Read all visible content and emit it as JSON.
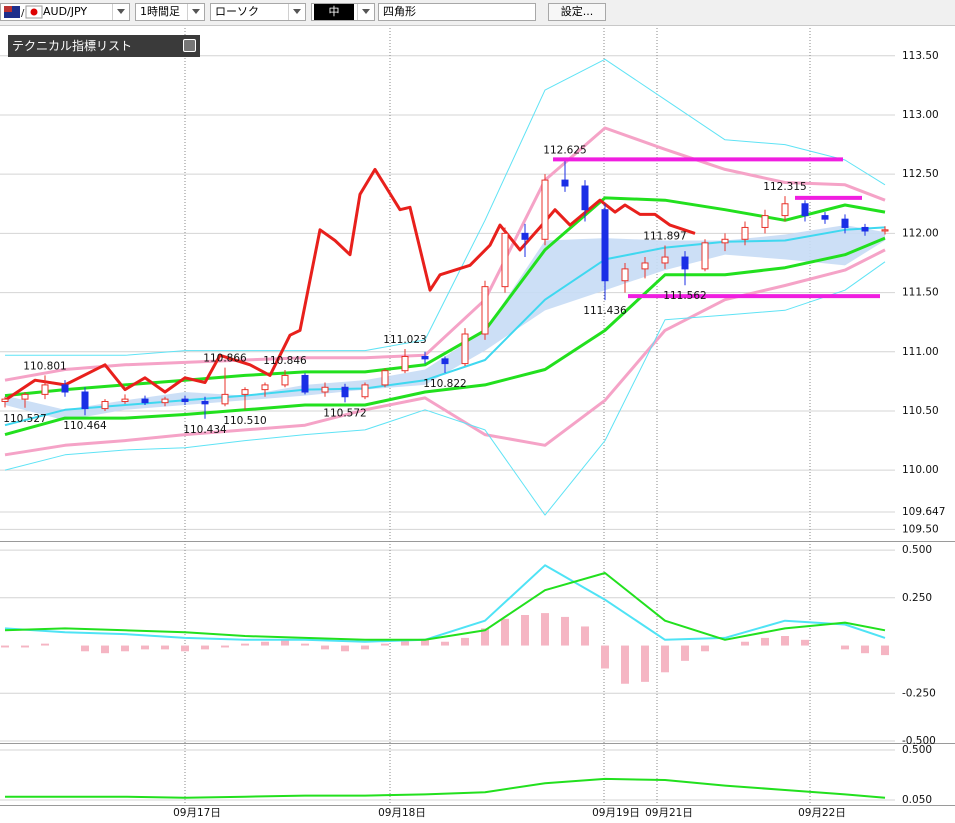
{
  "toolbar": {
    "symbol": "AUD/JPY",
    "timeframe": "1時間足",
    "chart_style": "ローソク",
    "line_width": "中",
    "shape": "四角形",
    "settings_button": "設定..."
  },
  "indicator_panel": {
    "title": "テクニカル指標リスト"
  },
  "chart_data": [
    {
      "type": "candlestick",
      "xlim": [
        -0.25,
        44.5
      ],
      "ylim": [
        109.41,
        113.76
      ],
      "xticks": [
        {
          "value": 9,
          "label": "09月17日"
        },
        {
          "value": 19.25,
          "label": "09月18日"
        },
        {
          "value": 29.95,
          "label": "09月19日"
        },
        {
          "value": 32.6,
          "label": "09月21日"
        },
        {
          "value": 40.25,
          "label": "09月22日"
        }
      ],
      "yticks": [
        {
          "value": 113.5,
          "label": "113.50"
        },
        {
          "value": 113,
          "label": "113.00"
        },
        {
          "value": 112.5,
          "label": "112.50"
        },
        {
          "value": 112,
          "label": "112.00"
        },
        {
          "value": 111.5,
          "label": "111.50"
        },
        {
          "value": 111,
          "label": "111.00"
        },
        {
          "value": 110.5,
          "label": "110.50"
        },
        {
          "value": 110,
          "label": "110.00"
        },
        109.647,
        {
          "value": 109.5,
          "label": "109.50"
        }
      ],
      "open": [
        110.58,
        110.6,
        110.64,
        110.72,
        110.66,
        110.52,
        110.58,
        110.6,
        110.57,
        110.6,
        110.58,
        110.56,
        110.64,
        110.68,
        110.72,
        110.8,
        110.66,
        110.7,
        110.62,
        110.72,
        110.84,
        110.96,
        110.94,
        110.9,
        111.15,
        111.55,
        112.0,
        111.95,
        112.45,
        112.4,
        112.2,
        111.6,
        111.7,
        111.75,
        111.8,
        111.7,
        111.92,
        111.95,
        112.05,
        112.15,
        112.25,
        112.15,
        112.12,
        112.05,
        112.02
      ],
      "high": [
        110.62,
        110.66,
        110.801,
        110.76,
        110.7,
        110.6,
        110.64,
        110.63,
        110.62,
        110.63,
        110.62,
        110.866,
        110.7,
        110.74,
        110.846,
        110.82,
        110.74,
        110.73,
        110.74,
        110.86,
        111.023,
        111.0,
        110.96,
        111.2,
        111.6,
        112.05,
        112.08,
        112.5,
        112.625,
        112.45,
        112.25,
        111.75,
        111.8,
        111.897,
        111.85,
        111.95,
        112.0,
        112.1,
        112.2,
        112.315,
        112.28,
        112.18,
        112.16,
        112.08,
        112.06
      ],
      "low": [
        110.53,
        110.527,
        110.6,
        110.62,
        110.464,
        110.5,
        110.56,
        110.55,
        110.54,
        110.55,
        110.434,
        110.54,
        110.51,
        110.62,
        110.7,
        110.64,
        110.62,
        110.572,
        110.6,
        110.7,
        110.82,
        110.9,
        110.822,
        110.88,
        111.1,
        111.5,
        111.8,
        111.9,
        112.35,
        112.1,
        111.436,
        111.5,
        111.62,
        111.7,
        111.562,
        111.68,
        111.85,
        111.9,
        112.0,
        112.1,
        112.1,
        112.08,
        112.0,
        111.98,
        111.99
      ],
      "close": [
        110.6,
        110.64,
        110.72,
        110.66,
        110.52,
        110.58,
        110.6,
        110.57,
        110.6,
        110.58,
        110.56,
        110.64,
        110.68,
        110.72,
        110.8,
        110.66,
        110.7,
        110.62,
        110.72,
        110.84,
        110.96,
        110.94,
        110.9,
        111.15,
        111.55,
        112.0,
        111.95,
        112.45,
        112.4,
        112.2,
        111.6,
        111.7,
        111.75,
        111.8,
        111.7,
        111.92,
        111.95,
        112.05,
        112.15,
        112.25,
        112.15,
        112.12,
        112.05,
        112.02,
        112.03
      ],
      "up_color": "#e8332b",
      "down_color": "#1a2ee6",
      "line_x": [
        0,
        3,
        6,
        9,
        12,
        15,
        18,
        21,
        24,
        27,
        30,
        33,
        36,
        39,
        42,
        44
      ],
      "cloud": {
        "color": "#c6dcf5",
        "upper": [
          110.63,
          110.51,
          110.59,
          110.66,
          110.63,
          110.72,
          110.76,
          110.85,
          111.18,
          111.94,
          111.96,
          111.94,
          111.94,
          111.99,
          112.07,
          112.01
        ],
        "lower": [
          110.55,
          110.42,
          110.51,
          110.55,
          110.59,
          110.63,
          110.68,
          110.72,
          111.01,
          111.35,
          111.52,
          111.69,
          111.82,
          111.78,
          111.73,
          111.94
        ]
      },
      "lines": [
        {
          "color": "#5fe3f5",
          "width": 1,
          "values": [
            110.97,
            110.97,
            110.97,
            111.01,
            111.01,
            111.01,
            111.01,
            111.1,
            112.11,
            113.21,
            113.47,
            113.13,
            112.79,
            112.75,
            112.62,
            112.41
          ]
        },
        {
          "color": "#f5a3c7",
          "width": 3,
          "values": [
            110.76,
            110.85,
            110.89,
            110.91,
            110.93,
            110.95,
            110.95,
            110.97,
            111.44,
            112.45,
            112.89,
            112.71,
            112.54,
            112.43,
            112.41,
            112.28
          ]
        },
        {
          "color": "#22e01e",
          "width": 3,
          "values": [
            110.63,
            110.68,
            110.72,
            110.76,
            110.8,
            110.83,
            110.83,
            110.89,
            111.18,
            111.86,
            112.3,
            112.28,
            112.2,
            112.11,
            112.24,
            112.18
          ]
        },
        {
          "color": "#3fd8f0",
          "width": 2,
          "values": [
            110.38,
            110.51,
            110.55,
            110.59,
            110.63,
            110.68,
            110.69,
            110.76,
            110.93,
            111.44,
            111.78,
            111.88,
            111.93,
            111.94,
            112.03,
            112.05
          ]
        },
        {
          "color": "#22e01e",
          "width": 3,
          "values": [
            110.3,
            110.44,
            110.44,
            110.47,
            110.51,
            110.55,
            110.55,
            110.66,
            110.72,
            110.85,
            111.18,
            111.65,
            111.65,
            111.71,
            111.82,
            111.96
          ]
        },
        {
          "color": "#f5a3c7",
          "width": 3,
          "values": [
            110.13,
            110.21,
            110.25,
            110.3,
            110.34,
            110.38,
            110.51,
            110.61,
            110.3,
            110.21,
            110.59,
            111.18,
            111.44,
            111.56,
            111.69,
            111.86
          ]
        },
        {
          "color": "#5fe3f5",
          "width": 1,
          "values": [
            110.0,
            110.13,
            110.17,
            110.19,
            110.25,
            110.3,
            110.34,
            110.51,
            110.34,
            109.62,
            110.25,
            111.27,
            111.31,
            111.35,
            111.52,
            111.76
          ]
        },
        {
          "color": "#e8201c",
          "width": 3,
          "x": [
            0,
            1.5,
            3,
            5,
            6,
            7,
            8,
            9,
            10,
            10.75,
            12.25,
            13.25,
            14.25,
            14.75,
            15.75,
            16.5,
            17.25,
            17.75,
            18.5,
            19.75,
            20.25,
            21.25,
            21.75,
            23.25,
            24.25,
            24.75,
            25.75,
            26.75,
            27.5,
            28.25,
            29.75,
            30.5,
            31,
            31.75,
            32.5,
            33.25,
            34.5
          ],
          "values": [
            110.59,
            110.76,
            110.72,
            110.89,
            110.68,
            110.78,
            110.66,
            110.78,
            110.74,
            110.97,
            110.89,
            110.8,
            111.14,
            111.18,
            112.03,
            111.94,
            111.82,
            112.33,
            112.54,
            112.2,
            112.22,
            111.52,
            111.65,
            111.73,
            111.9,
            112.07,
            111.86,
            112.05,
            112.2,
            112.07,
            112.28,
            112.18,
            112.24,
            112.16,
            112.16,
            112.07,
            112.0
          ]
        }
      ],
      "hlines": [
        {
          "color": "#f01ee0",
          "value": 112.625,
          "x": [
            27.4,
            41.9
          ]
        },
        {
          "color": "#f01ee0",
          "value": 111.47,
          "x": [
            31.15,
            43.75
          ]
        },
        {
          "color": "#f01ee0",
          "value": 112.3,
          "x": [
            39.5,
            42.85
          ]
        }
      ],
      "annotations": [
        {
          "x": 1,
          "value": 110.527,
          "pos": "below"
        },
        {
          "x": 2,
          "value": 110.801,
          "pos": "above"
        },
        {
          "x": 4,
          "value": 110.464,
          "pos": "below"
        },
        {
          "x": 10,
          "value": 110.434,
          "pos": "below"
        },
        {
          "x": 11,
          "value": 110.866,
          "pos": "above"
        },
        {
          "x": 12,
          "value": 110.51,
          "label": "110.510",
          "pos": "below"
        },
        {
          "x": 14,
          "value": 110.846,
          "pos": "above"
        },
        {
          "x": 17,
          "value": 110.572,
          "pos": "below"
        },
        {
          "x": 20,
          "value": 111.023,
          "pos": "above"
        },
        {
          "x": 22,
          "value": 110.822,
          "pos": "below"
        },
        {
          "x": 28,
          "value": 112.625,
          "pos": "above"
        },
        {
          "x": 30,
          "value": 111.436,
          "pos": "below"
        },
        {
          "x": 33,
          "value": 111.897,
          "pos": "above"
        },
        {
          "x": 34,
          "value": 111.562,
          "pos": "below"
        },
        {
          "x": 39,
          "value": 112.315,
          "pos": "above"
        }
      ]
    },
    {
      "type": "bar",
      "xlim": [
        -0.25,
        44.5
      ],
      "ylim": [
        -0.505,
        0.537
      ],
      "yticks": [
        {
          "value": 0.5,
          "label": "0.500"
        },
        {
          "value": 0.25,
          "label": "0.250"
        },
        {
          "value": -0.25,
          "label": "-0.250"
        },
        {
          "value": -0.5,
          "label": "-0.500"
        }
      ],
      "color": "#f5b5c3",
      "values": [
        -0.01,
        -0.01,
        0.01,
        0.0,
        -0.03,
        -0.04,
        -0.03,
        -0.02,
        -0.02,
        -0.03,
        -0.02,
        -0.01,
        0.01,
        0.02,
        0.03,
        0.01,
        -0.02,
        -0.03,
        -0.02,
        0.01,
        0.03,
        0.03,
        0.02,
        0.04,
        0.09,
        0.14,
        0.16,
        0.17,
        0.15,
        0.1,
        -0.12,
        -0.2,
        -0.19,
        -0.14,
        -0.08,
        -0.03,
        0.0,
        0.02,
        0.04,
        0.05,
        0.03,
        0.0,
        -0.02,
        -0.04,
        -0.05
      ],
      "line_x": [
        0,
        3,
        6,
        9,
        12,
        15,
        18,
        21,
        24,
        27,
        30,
        33,
        36,
        39,
        42,
        44
      ],
      "series": [
        {
          "color": "#4fe3f5",
          "values": [
            0.09,
            0.07,
            0.06,
            0.04,
            0.03,
            0.03,
            0.02,
            0.03,
            0.13,
            0.42,
            0.24,
            0.03,
            0.04,
            0.13,
            0.11,
            0.04
          ]
        },
        {
          "color": "#22e01e",
          "values": [
            0.08,
            0.09,
            0.08,
            0.07,
            0.05,
            0.04,
            0.03,
            0.03,
            0.08,
            0.29,
            0.38,
            0.13,
            0.03,
            0.09,
            0.12,
            0.08
          ]
        }
      ]
    },
    {
      "type": "line",
      "xlim": [
        -0.25,
        44.5
      ],
      "ylim": [
        0.005,
        0.545
      ],
      "yticks": [
        {
          "value": 0.5,
          "label": "0.500"
        },
        {
          "value": 0.05,
          "label": "0.050"
        }
      ],
      "line_x": [
        0,
        3,
        6,
        9,
        12,
        15,
        18,
        21,
        24,
        27,
        30,
        33,
        36,
        39,
        42,
        44
      ],
      "series": [
        {
          "color": "#22e01e",
          "values": [
            0.08,
            0.08,
            0.08,
            0.07,
            0.08,
            0.09,
            0.09,
            0.1,
            0.12,
            0.2,
            0.24,
            0.23,
            0.18,
            0.14,
            0.1,
            0.07
          ]
        }
      ]
    }
  ]
}
